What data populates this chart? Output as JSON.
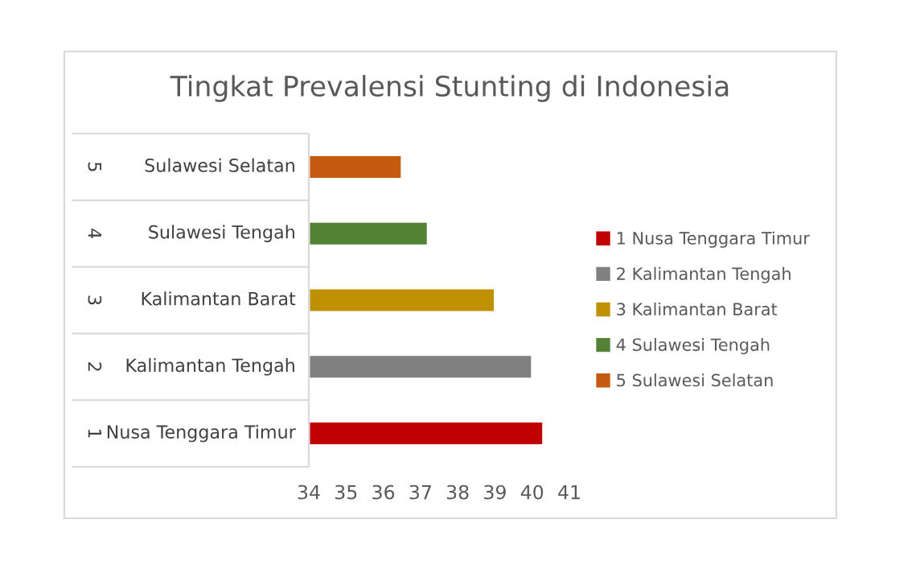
{
  "chart_data": {
    "type": "bar",
    "orientation": "horizontal",
    "title": "Tingkat Prevalensi Stunting di Indonesia",
    "categories": [
      "Sulawesi Selatan",
      "Sulawesi Tengah",
      "Kalimantan Barat",
      "Kalimantan Tengah",
      "Nusa Tenggara Timur"
    ],
    "annotations": [
      "5",
      "4",
      "3",
      "2",
      "1"
    ],
    "series": [
      {
        "name": "1 Nusa Tenggara Timur",
        "color": "#c00000",
        "values": [
          null,
          null,
          null,
          null,
          40.3
        ]
      },
      {
        "name": "2 Kalimantan Tengah",
        "color": "#808080",
        "values": [
          null,
          null,
          null,
          40.0,
          null
        ]
      },
      {
        "name": "3 Kalimantan Barat",
        "color": "#bf9000",
        "values": [
          null,
          null,
          39.0,
          null,
          null
        ]
      },
      {
        "name": "4 Sulawesi Tengah",
        "color": "#548235",
        "values": [
          null,
          37.2,
          null,
          null,
          null
        ]
      },
      {
        "name": "5 Sulawesi Selatan",
        "color": "#c55a11",
        "values": [
          36.5,
          null,
          null,
          null,
          null
        ]
      }
    ],
    "xlim": [
      34,
      41
    ],
    "xticks": [
      34,
      35,
      36,
      37,
      38,
      39,
      40,
      41
    ],
    "grid": false,
    "legend": "right"
  }
}
